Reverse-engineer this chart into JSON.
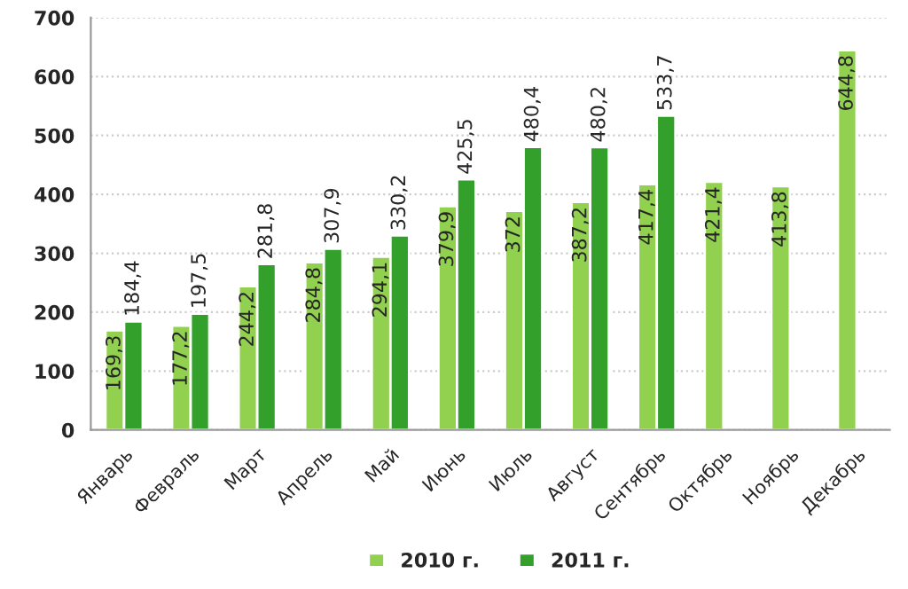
{
  "chart_data": {
    "type": "bar",
    "categories": [
      "Январь",
      "Февраль",
      "Март",
      "Апрель",
      "Май",
      "Июнь",
      "Июль",
      "Август",
      "Сентябрь",
      "Октябрь",
      "Ноябрь",
      "Декабрь"
    ],
    "series": [
      {
        "name": "2010 г.",
        "color": "#92d050",
        "values": [
          169.3,
          177.2,
          244.2,
          284.8,
          294.1,
          379.9,
          372,
          387.2,
          417.4,
          421.4,
          413.8,
          644.8
        ],
        "value_labels": [
          "169,3",
          "177,2",
          "244,2",
          "284,8",
          "294,1",
          "379,9",
          "372",
          "387,2",
          "417,4",
          "421,4",
          "413,8",
          "644,8"
        ]
      },
      {
        "name": "2011 г.",
        "color": "#33a02c",
        "values": [
          184.4,
          197.5,
          281.8,
          307.9,
          330.2,
          425.5,
          480.4,
          480.2,
          533.7,
          null,
          null,
          null
        ],
        "value_labels": [
          "184,4",
          "197,5",
          "281,8",
          "307,9",
          "330,2",
          "425,5",
          "480,4",
          "480,2",
          "533,7",
          null,
          null,
          null
        ]
      }
    ],
    "ylim": [
      0,
      700
    ],
    "yticks": [
      0,
      100,
      200,
      300,
      400,
      500,
      600,
      700
    ],
    "grid": "y",
    "legend": "bottom"
  }
}
